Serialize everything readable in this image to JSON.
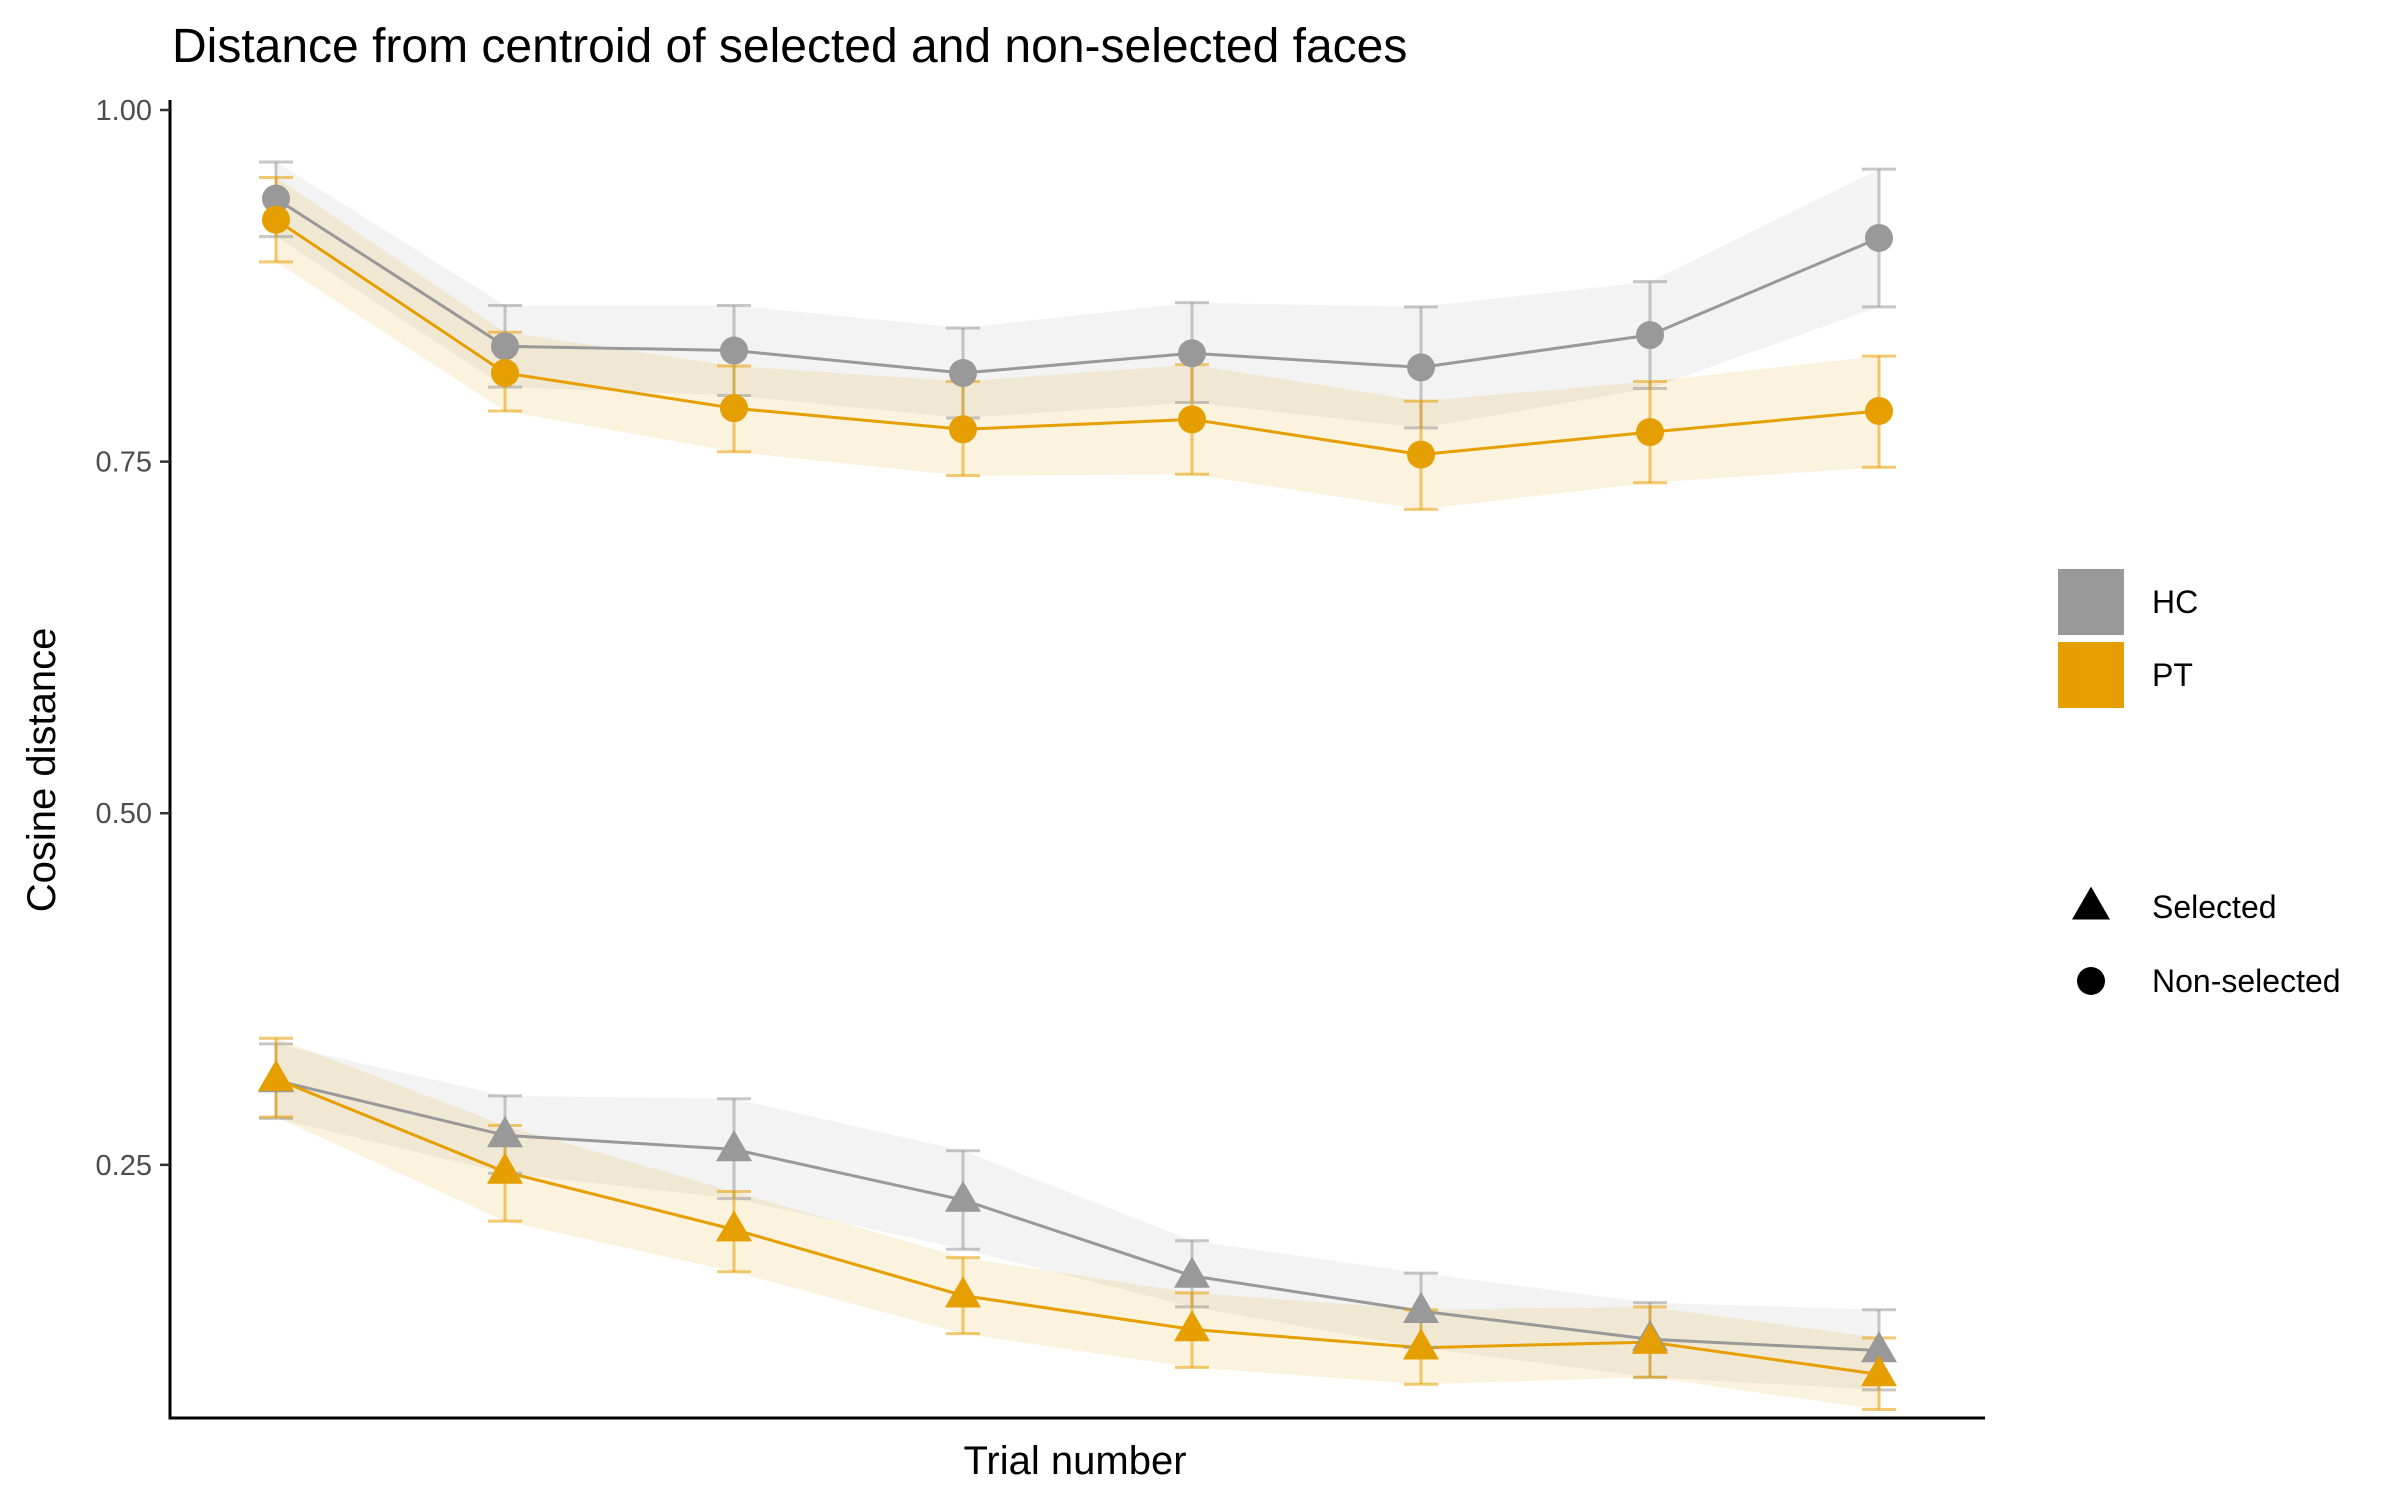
{
  "chart_data": {
    "type": "line",
    "title": "Distance from centroid of selected and non-selected faces",
    "xlabel": "Trial number",
    "ylabel": "Cosine distance",
    "x": [
      1,
      2,
      3,
      4,
      5,
      6,
      7,
      8
    ],
    "ylim": [
      0.07,
      1.0
    ],
    "yticks": [
      0.25,
      0.5,
      0.75,
      1.0
    ],
    "ytick_labels": [
      "0.25",
      "0.50",
      "0.75",
      "1.00"
    ],
    "grid": false,
    "legend_position": "right",
    "series": [
      {
        "group": "HC",
        "condition": "Non-selected",
        "color": "#999999",
        "values": [
          0.937,
          0.832,
          0.829,
          0.813,
          0.827,
          0.817,
          0.84,
          0.909
        ],
        "ci_lower": [
          0.91,
          0.803,
          0.797,
          0.781,
          0.792,
          0.774,
          0.802,
          0.86
        ],
        "ci_upper": [
          0.963,
          0.861,
          0.861,
          0.845,
          0.863,
          0.86,
          0.878,
          0.958
        ]
      },
      {
        "group": "PT",
        "condition": "Non-selected",
        "color": "#E69F00",
        "values": [
          0.922,
          0.813,
          0.788,
          0.773,
          0.78,
          0.755,
          0.771,
          0.786
        ],
        "ci_lower": [
          0.892,
          0.786,
          0.757,
          0.74,
          0.741,
          0.716,
          0.735,
          0.746
        ],
        "ci_upper": [
          0.952,
          0.842,
          0.818,
          0.807,
          0.819,
          0.793,
          0.807,
          0.825
        ]
      },
      {
        "group": "HC",
        "condition": "Selected",
        "color": "#999999",
        "values": [
          0.31,
          0.271,
          0.261,
          0.225,
          0.171,
          0.146,
          0.126,
          0.118
        ],
        "ci_lower": [
          0.283,
          0.244,
          0.226,
          0.19,
          0.149,
          0.12,
          0.099,
          0.09
        ],
        "ci_upper": [
          0.336,
          0.299,
          0.297,
          0.26,
          0.196,
          0.173,
          0.152,
          0.147
        ]
      },
      {
        "group": "PT",
        "condition": "Selected",
        "color": "#E69F00",
        "values": [
          0.311,
          0.245,
          0.204,
          0.157,
          0.133,
          0.12,
          0.124,
          0.101
        ],
        "ci_lower": [
          0.284,
          0.21,
          0.174,
          0.13,
          0.106,
          0.094,
          0.099,
          0.076
        ],
        "ci_upper": [
          0.34,
          0.278,
          0.231,
          0.184,
          0.159,
          0.147,
          0.149,
          0.127
        ]
      }
    ],
    "legend": {
      "groups": [
        {
          "label": "HC",
          "color": "#999999"
        },
        {
          "label": "PT",
          "color": "#E69F00"
        }
      ],
      "shapes": [
        {
          "label": "Selected",
          "shape": "triangle"
        },
        {
          "label": "Non-selected",
          "shape": "circle"
        }
      ]
    }
  }
}
